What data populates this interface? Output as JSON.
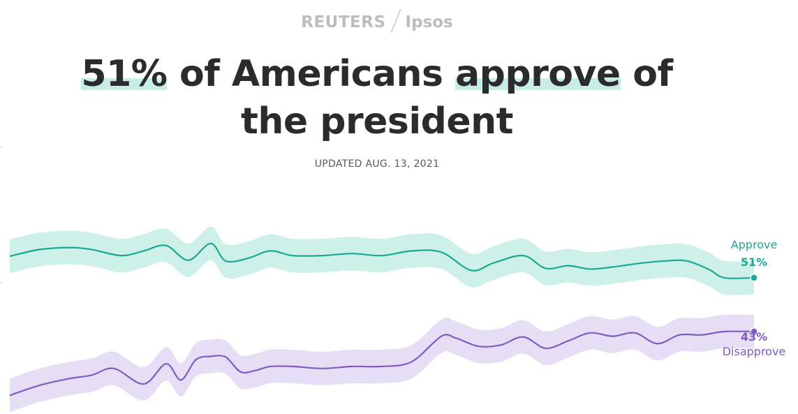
{
  "brand": {
    "left": "REUTERS",
    "right": "Ipsos"
  },
  "headline": {
    "pct": "51%",
    "part1": " of Americans ",
    "verb": "approve",
    "part2": " of",
    "line2": "the president"
  },
  "updated": "UPDATED AUG. 13, 2021",
  "colors": {
    "approve": "#1aa891",
    "approve_band": "#cdf0e9",
    "disapprove": "#7d5cc4",
    "disapprove_band": "#e5def4",
    "headline_highlight": "#c8ede6"
  },
  "chart_data": {
    "type": "line",
    "x_range": [
      0,
      100
    ],
    "ylim": [
      30,
      62
    ],
    "grid": false,
    "series": [
      {
        "name": "Approve",
        "last_label": "51%",
        "color": "#1aa891",
        "band_halfwidth": 2.5,
        "x": [
          0,
          4,
          8,
          11,
          15,
          18,
          21,
          24,
          27,
          29,
          32,
          35,
          38,
          42,
          46,
          50,
          54,
          58,
          62,
          65,
          69,
          72,
          75,
          78,
          81,
          85,
          88,
          91,
          94,
          96,
          100
        ],
        "values": [
          54.2,
          55.2,
          55.5,
          55.2,
          54.3,
          55.0,
          55.8,
          53.6,
          56.1,
          53.5,
          53.9,
          55.0,
          54.3,
          54.3,
          54.6,
          54.3,
          55.0,
          54.8,
          52.1,
          53.2,
          54.3,
          52.4,
          52.8,
          52.3,
          52.6,
          53.2,
          53.5,
          53.5,
          52.2,
          51.0,
          51.0
        ]
      },
      {
        "name": "Disapprove",
        "last_label": "43%",
        "color": "#7d5cc4",
        "band_halfwidth": 2.5,
        "x": [
          0,
          4,
          8,
          11,
          14,
          18,
          21,
          23,
          25,
          27,
          29,
          31,
          33,
          35,
          38,
          42,
          46,
          50,
          54,
          58,
          60,
          63,
          66,
          69,
          72,
          75,
          78,
          81,
          84,
          87,
          90,
          93,
          96,
          100
        ],
        "values": [
          33.5,
          35.0,
          36.0,
          36.5,
          37.5,
          35.2,
          38.2,
          35.8,
          38.8,
          39.3,
          39.2,
          37.0,
          37.2,
          37.8,
          37.8,
          37.5,
          37.8,
          37.8,
          38.5,
          42.3,
          42.0,
          40.8,
          41.0,
          42.2,
          40.5,
          41.6,
          42.8,
          42.3,
          42.8,
          41.2,
          42.5,
          42.5,
          43.0,
          43.0
        ]
      }
    ]
  }
}
